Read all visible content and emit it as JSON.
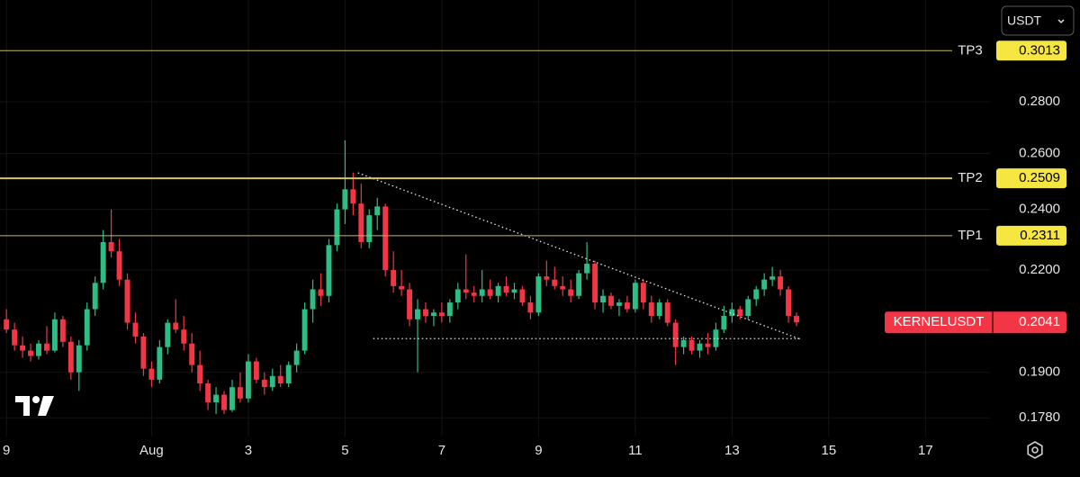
{
  "chart_data": {
    "type": "candlestick",
    "log_scale": true,
    "grid": true,
    "currency_button": "USDT",
    "categories": [
      null,
      null,
      null,
      null,
      null,
      null,
      null,
      null,
      null,
      null,
      null,
      null,
      null,
      null,
      null,
      null,
      null,
      null,
      null,
      null,
      null,
      null,
      null,
      null,
      null,
      null,
      null,
      null,
      null,
      null,
      null,
      null,
      null,
      null,
      null,
      null,
      null,
      null,
      null,
      null,
      null,
      null,
      null,
      null,
      null,
      null,
      null,
      null,
      null,
      null,
      null,
      null,
      null,
      null,
      null,
      null,
      null,
      null,
      null,
      null,
      null,
      null,
      null,
      null,
      null,
      null,
      null,
      null,
      null,
      null,
      null,
      null,
      null,
      null,
      null,
      null,
      null,
      null,
      null,
      null,
      null,
      null,
      null,
      null,
      null,
      null,
      null,
      null,
      null,
      null,
      null,
      null,
      null,
      null,
      null,
      null,
      null,
      null,
      null
    ],
    "series": [
      {
        "name": "KERNELUSDT",
        "up_color": "#2ebd85",
        "down_color": "#f23645",
        "open": [
          0.205,
          0.202,
          0.1975,
          0.196,
          0.1945,
          0.198,
          0.196,
          0.205,
          0.1985,
          0.19,
          0.1975,
          0.208,
          0.216,
          0.229,
          0.226,
          0.217,
          0.204,
          0.2,
          0.191,
          0.188,
          0.197,
          0.204,
          0.202,
          0.198,
          0.192,
          0.187,
          0.182,
          0.184,
          0.18,
          0.186,
          0.183,
          0.193,
          0.188,
          0.186,
          0.189,
          0.187,
          0.192,
          0.196,
          0.208,
          0.214,
          0.212,
          0.228,
          0.24,
          0.247,
          0.242,
          0.229,
          0.238,
          0.241,
          0.22,
          0.215,
          0.214,
          0.205,
          0.208,
          0.206,
          0.207,
          0.206,
          0.21,
          0.214,
          0.213,
          0.212,
          0.214,
          0.212,
          0.215,
          0.213,
          0.214,
          0.21,
          0.207,
          0.218,
          0.217,
          0.215,
          0.214,
          0.212,
          0.219,
          0.222,
          0.21,
          0.212,
          0.209,
          0.21,
          0.208,
          0.216,
          0.21,
          0.206,
          0.21,
          0.204,
          0.197,
          0.199,
          0.196,
          0.198,
          0.197,
          0.202,
          0.206,
          0.208,
          0.206,
          0.211,
          0.214,
          0.217,
          0.218,
          0.214,
          0.206
        ],
        "high": [
          0.208,
          0.204,
          0.2,
          0.198,
          0.199,
          0.203,
          0.207,
          0.206,
          0.2,
          0.199,
          0.21,
          0.218,
          0.233,
          0.24,
          0.23,
          0.219,
          0.207,
          0.201,
          0.193,
          0.199,
          0.205,
          0.211,
          0.206,
          0.201,
          0.196,
          0.188,
          0.186,
          0.185,
          0.188,
          0.19,
          0.195,
          0.194,
          0.19,
          0.191,
          0.192,
          0.193,
          0.198,
          0.21,
          0.217,
          0.219,
          0.23,
          0.242,
          0.265,
          0.253,
          0.249,
          0.24,
          0.244,
          0.242,
          0.226,
          0.22,
          0.216,
          0.211,
          0.21,
          0.208,
          0.21,
          0.211,
          0.216,
          0.225,
          0.215,
          0.22,
          0.217,
          0.216,
          0.218,
          0.216,
          0.215,
          0.212,
          0.219,
          0.223,
          0.221,
          0.218,
          0.217,
          0.22,
          0.229,
          0.223,
          0.214,
          0.213,
          0.211,
          0.212,
          0.217,
          0.217,
          0.212,
          0.211,
          0.211,
          0.205,
          0.2,
          0.2,
          0.199,
          0.201,
          0.204,
          0.209,
          0.21,
          0.209,
          0.212,
          0.215,
          0.219,
          0.221,
          0.22,
          0.215,
          0.207
        ],
        "low": [
          0.201,
          0.196,
          0.194,
          0.193,
          0.1935,
          0.195,
          0.1955,
          0.197,
          0.188,
          0.185,
          0.196,
          0.206,
          0.214,
          0.224,
          0.215,
          0.202,
          0.198,
          0.189,
          0.186,
          0.187,
          0.195,
          0.201,
          0.196,
          0.19,
          0.185,
          0.18,
          0.179,
          0.179,
          0.1795,
          0.182,
          0.182,
          0.187,
          0.184,
          0.185,
          0.186,
          0.186,
          0.19,
          0.195,
          0.204,
          0.209,
          0.21,
          0.226,
          0.235,
          0.238,
          0.227,
          0.227,
          0.233,
          0.218,
          0.213,
          0.212,
          0.203,
          0.19,
          0.204,
          0.203,
          0.204,
          0.204,
          0.208,
          0.211,
          0.21,
          0.21,
          0.211,
          0.21,
          0.212,
          0.211,
          0.209,
          0.205,
          0.206,
          0.215,
          0.214,
          0.212,
          0.21,
          0.211,
          0.217,
          0.208,
          0.207,
          0.208,
          0.206,
          0.207,
          0.207,
          0.208,
          0.204,
          0.205,
          0.203,
          0.192,
          0.195,
          0.195,
          0.194,
          0.195,
          0.196,
          0.201,
          0.204,
          0.205,
          0.205,
          0.209,
          0.212,
          0.215,
          0.212,
          0.204,
          0.203
        ],
        "close": [
          0.202,
          0.1975,
          0.196,
          0.1945,
          0.198,
          0.196,
          0.205,
          0.1985,
          0.19,
          0.1975,
          0.208,
          0.216,
          0.229,
          0.226,
          0.217,
          0.204,
          0.2,
          0.191,
          0.188,
          0.197,
          0.204,
          0.202,
          0.198,
          0.192,
          0.187,
          0.182,
          0.184,
          0.18,
          0.186,
          0.183,
          0.193,
          0.188,
          0.186,
          0.189,
          0.187,
          0.192,
          0.196,
          0.208,
          0.214,
          0.212,
          0.228,
          0.24,
          0.247,
          0.242,
          0.229,
          0.238,
          0.241,
          0.22,
          0.215,
          0.214,
          0.205,
          0.208,
          0.206,
          0.207,
          0.206,
          0.21,
          0.214,
          0.213,
          0.212,
          0.214,
          0.212,
          0.215,
          0.213,
          0.214,
          0.21,
          0.207,
          0.218,
          0.217,
          0.215,
          0.214,
          0.212,
          0.219,
          0.222,
          0.21,
          0.212,
          0.209,
          0.21,
          0.208,
          0.216,
          0.21,
          0.206,
          0.21,
          0.204,
          0.197,
          0.199,
          0.196,
          0.198,
          0.197,
          0.202,
          0.206,
          0.208,
          0.206,
          0.211,
          0.214,
          0.217,
          0.218,
          0.214,
          0.206,
          0.2041
        ]
      }
    ],
    "last_price": 0.2041,
    "last_price_color": "#f23645",
    "levels": [
      {
        "label": "TP3",
        "value": 0.3013,
        "color": "#c9b95b",
        "width": 1
      },
      {
        "label": "TP2",
        "value": 0.2509,
        "color": "#d8c65c",
        "width": 2
      },
      {
        "label": "TP1",
        "value": 0.2311,
        "color": "#c9b95b",
        "width": 1
      }
    ],
    "level_box_color": "#f5e642",
    "trendlines": [
      {
        "x": [
          43.6,
          98.5
        ],
        "y": [
          0.2529,
          0.1992
        ]
      },
      {
        "x": [
          45.5,
          98.5
        ],
        "y": [
          0.1994,
          0.1994
        ]
      }
    ],
    "xlim": [
      -0.8,
      122
    ],
    "xticks": [
      {
        "value": 0,
        "label": "9"
      },
      {
        "value": 18,
        "label": "Aug"
      },
      {
        "value": 30,
        "label": "3"
      },
      {
        "value": 42,
        "label": "5"
      },
      {
        "value": 54,
        "label": "7"
      },
      {
        "value": 66,
        "label": "9"
      },
      {
        "value": 78,
        "label": "11"
      },
      {
        "value": 90,
        "label": "13"
      },
      {
        "value": 102,
        "label": "15"
      },
      {
        "value": 114,
        "label": "17"
      }
    ],
    "ylim": [
      0.1733,
      0.324
    ],
    "yticks": [
      {
        "value": 0.28,
        "label": "0.2800"
      },
      {
        "value": 0.26,
        "label": "0.2600"
      },
      {
        "value": 0.24,
        "label": "0.2400"
      },
      {
        "value": 0.22,
        "label": "0.2200"
      },
      {
        "value": 0.19,
        "label": "0.1900"
      },
      {
        "value": 0.178,
        "label": "0.1780"
      }
    ]
  }
}
